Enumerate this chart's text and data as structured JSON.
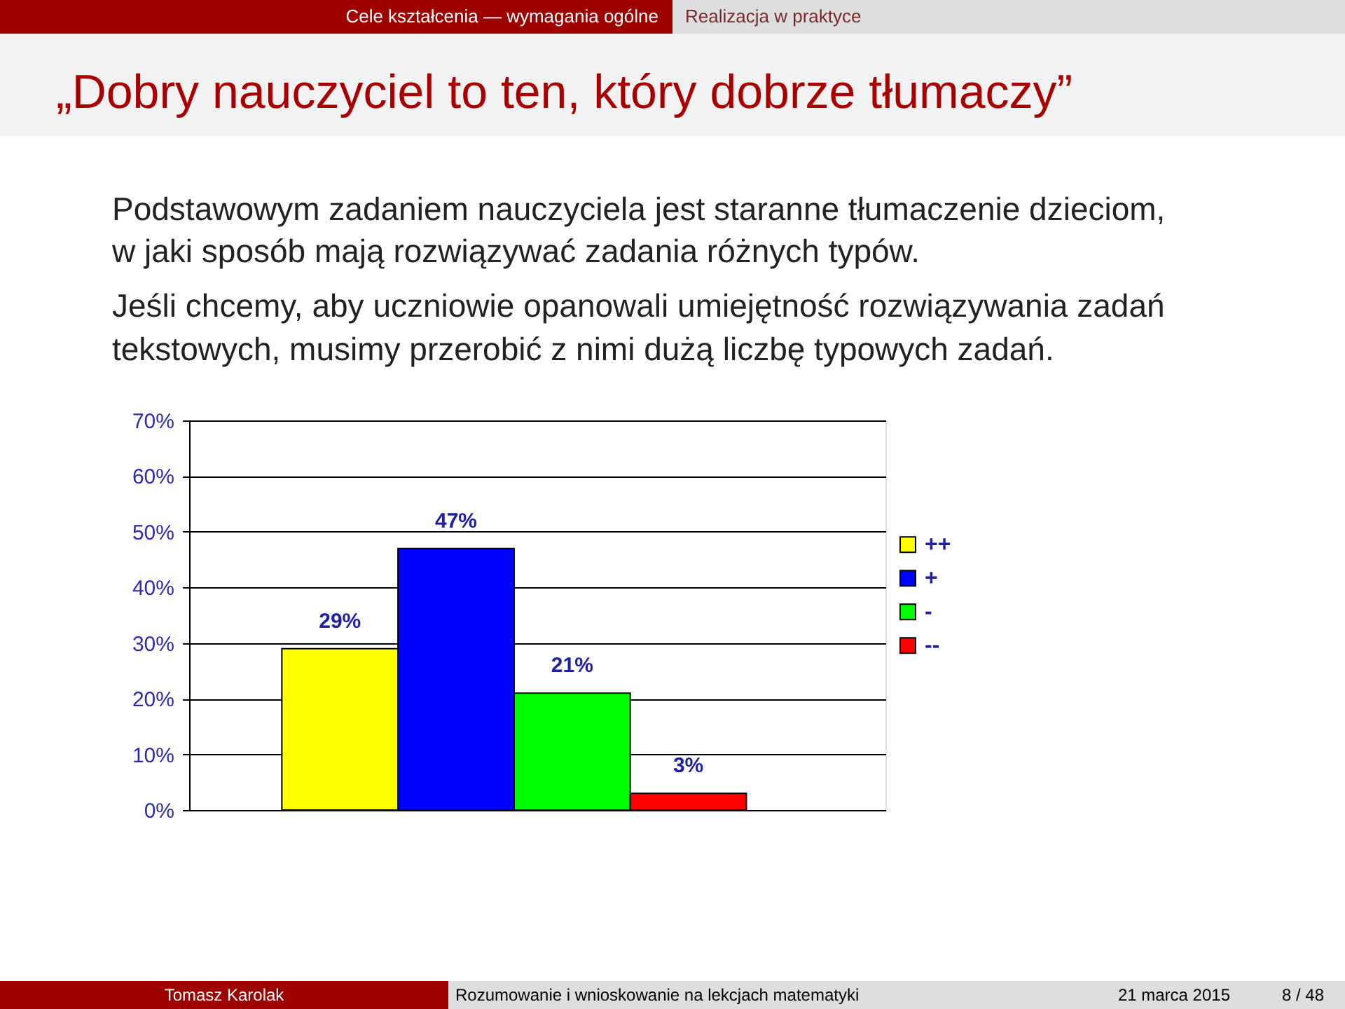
{
  "chart_data": {
    "type": "bar",
    "title": "„Dobry nauczyciel to ten, który dobrze tłumaczy”",
    "categories": [
      null
    ],
    "series": [
      {
        "name": "++",
        "color": "#ffff00",
        "values": [
          29
        ],
        "value_labels": [
          "29%"
        ]
      },
      {
        "name": "+",
        "color": "#0000ff",
        "values": [
          47
        ],
        "value_labels": [
          "47%"
        ]
      },
      {
        "name": "-",
        "color": "#00ff00",
        "values": [
          21
        ],
        "value_labels": [
          "21%"
        ]
      },
      {
        "name": "--",
        "color": "#ff0000",
        "values": [
          3
        ],
        "value_labels": [
          "3%"
        ]
      }
    ],
    "ylim": [
      0,
      70
    ],
    "yticks": [
      {
        "value": 0,
        "label": "0%"
      },
      {
        "value": 10,
        "label": "10%"
      },
      {
        "value": 20,
        "label": "20%"
      },
      {
        "value": 30,
        "label": "30%"
      },
      {
        "value": 40,
        "label": "40%"
      },
      {
        "value": 50,
        "label": "50%"
      },
      {
        "value": 60,
        "label": "60%"
      },
      {
        "value": 70,
        "label": "70%"
      }
    ],
    "grid": "y",
    "legend": "right",
    "tick_labels": "y",
    "annotations": [
      "Cele kształcenia — wymagania ogólne",
      "Realizacja w praktyce",
      "Podstawowym zadaniem nauczyciela jest staranne tłumaczenie dzieciom,",
      "w jaki sposób mają rozwiązywać zadania różnych typów.",
      "Jeśli chcemy, aby uczniowie opanowali umiejętność rozwiązywania zadań",
      "tekstowych, musimy przerobić z nimi dużą liczbę typowych zadań.",
      "Tomasz Karolak",
      "Rozumowanie i wnioskowanie na lekcjach matematyki",
      "21 marca 2015",
      "8 / 48"
    ]
  }
}
